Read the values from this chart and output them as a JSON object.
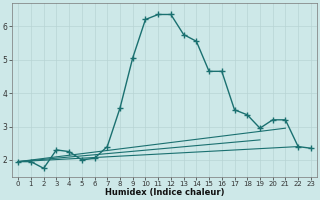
{
  "xlabel": "Humidex (Indice chaleur)",
  "x_values": [
    0,
    1,
    2,
    3,
    4,
    5,
    6,
    7,
    8,
    9,
    10,
    11,
    12,
    13,
    14,
    15,
    16,
    17,
    18,
    19,
    20,
    21,
    22,
    23
  ],
  "main_line_y": [
    1.95,
    1.95,
    1.75,
    2.3,
    2.25,
    2.0,
    2.05,
    2.4,
    3.55,
    5.05,
    6.2,
    6.35,
    6.35,
    5.75,
    5.55,
    4.65,
    4.65,
    3.5,
    3.35,
    2.95,
    3.2,
    3.2,
    2.4,
    2.35
  ],
  "flat_line1": {
    "x": [
      0,
      22
    ],
    "y": [
      1.95,
      2.4
    ]
  },
  "flat_line2": {
    "x": [
      0,
      21
    ],
    "y": [
      1.95,
      2.95
    ]
  },
  "flat_line3": {
    "x": [
      0,
      19
    ],
    "y": [
      1.95,
      2.6
    ]
  },
  "background_color": "#cde8e8",
  "grid_color": "#b8d4d4",
  "line_color": "#1a7070",
  "ylim": [
    1.5,
    6.7
  ],
  "xlim": [
    -0.5,
    23.5
  ],
  "yticks": [
    2,
    3,
    4,
    5,
    6
  ],
  "xticks": [
    0,
    1,
    2,
    3,
    4,
    5,
    6,
    7,
    8,
    9,
    10,
    11,
    12,
    13,
    14,
    15,
    16,
    17,
    18,
    19,
    20,
    21,
    22,
    23
  ]
}
